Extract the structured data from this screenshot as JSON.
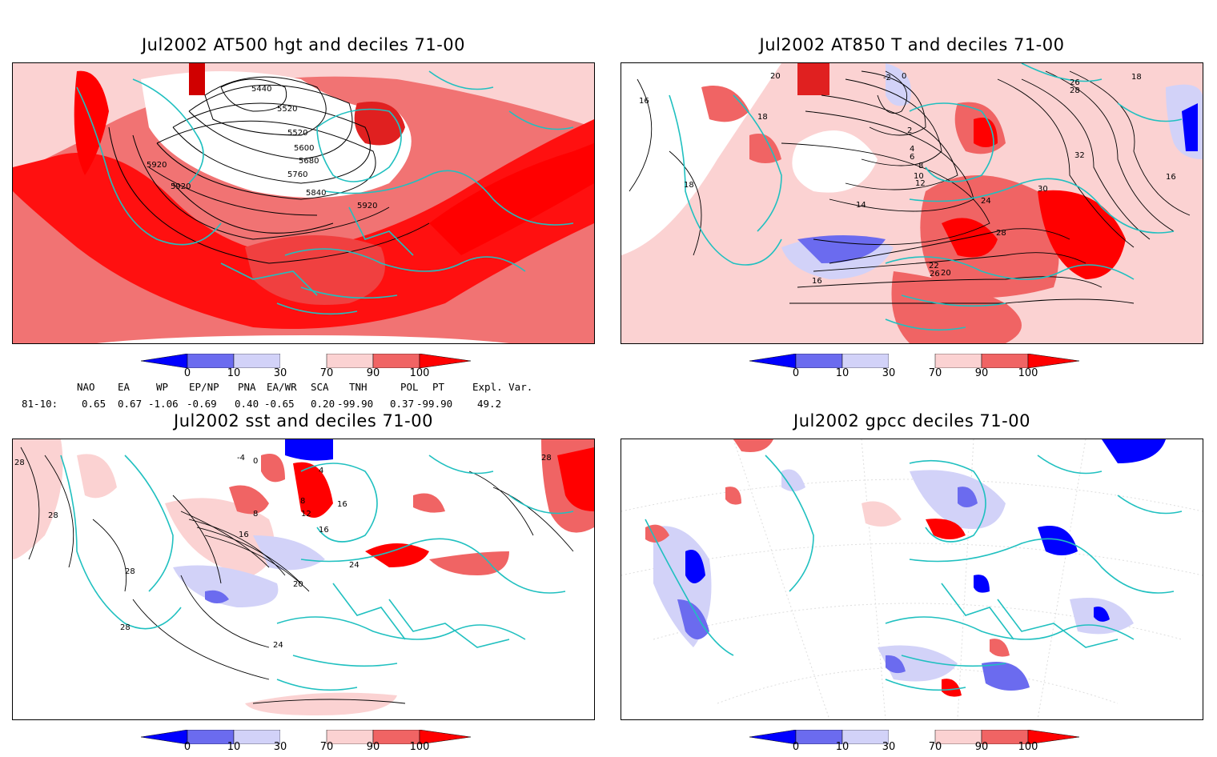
{
  "panels": [
    {
      "title": "Jul2002 AT500 hgt and deciles 71-00",
      "contour_labels": [
        "5440",
        "5520",
        "5520",
        "5600",
        "5680",
        "5760",
        "5840",
        "5920",
        "5920",
        "5920"
      ]
    },
    {
      "title": "Jul2002 AT850 T and deciles 71-00",
      "contour_labels": [
        "-2",
        "0",
        "2",
        "4",
        "6",
        "8",
        "10",
        "12",
        "14",
        "16",
        "16",
        "16",
        "18",
        "18",
        "18",
        "20",
        "20",
        "22",
        "24",
        "26",
        "28",
        "30",
        "32",
        "26",
        "28"
      ]
    },
    {
      "title": "Jul2002 sst and deciles 71-00",
      "contour_labels": [
        "28",
        "28",
        "28",
        "28",
        "28",
        "24",
        "20",
        "16",
        "12",
        "8",
        "8",
        "4",
        "0",
        "-4",
        "16",
        "16",
        "24"
      ]
    },
    {
      "title": "Jul2002 gpcc deciles 71-00",
      "contour_labels": []
    }
  ],
  "colorbar": {
    "ticks": [
      "0",
      "10",
      "30",
      "70",
      "90",
      "100"
    ],
    "colors": [
      "#0000ff",
      "#6b6bef",
      "#d2d2f8",
      "#ffffff",
      "#fbd2d2",
      "#f06464",
      "#ff0000"
    ]
  },
  "indices": {
    "headers": [
      "NAO",
      "EA",
      "WP",
      "EP/NP",
      "PNA",
      "EA/WR",
      "SCA",
      "TNH",
      "POL",
      "PT",
      "Expl. Var."
    ],
    "row_label": "81-10:",
    "values": [
      "0.65",
      "0.67",
      "-1.06",
      "-0.69",
      "0.40",
      "-0.65",
      "0.20",
      "-99.90",
      "0.37",
      "-99.90",
      "49.2"
    ]
  }
}
